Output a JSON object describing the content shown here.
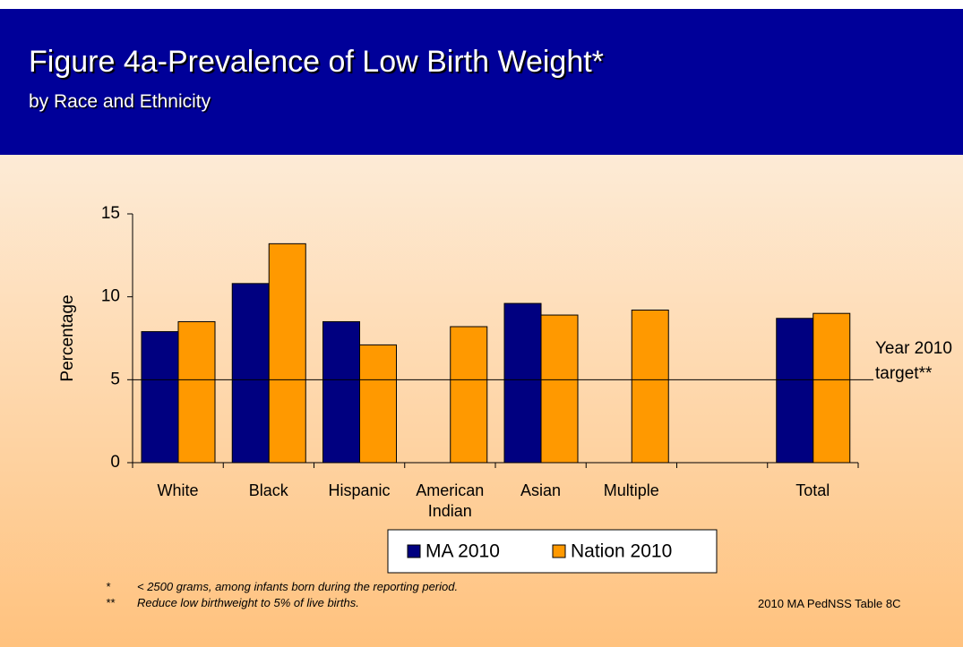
{
  "header": {
    "title": "Figure 4a-Prevalence of Low Birth Weight*",
    "subtitle": "by Race and Ethnicity"
  },
  "chart_data": {
    "type": "bar",
    "y_label": "Percentage",
    "categories": [
      "White",
      "Black",
      "Hispanic",
      "American Indian",
      "Asian",
      "Multiple",
      null,
      "Total"
    ],
    "series": [
      {
        "name": "MA 2010",
        "color": "#000080",
        "values": [
          7.9,
          10.8,
          8.5,
          null,
          9.6,
          null,
          null,
          8.7
        ]
      },
      {
        "name": "Nation 2010",
        "color": "#ff9900",
        "values": [
          8.5,
          13.2,
          7.1,
          8.2,
          8.9,
          9.2,
          null,
          9.0
        ]
      }
    ],
    "ylim": [
      0,
      15
    ],
    "yticks": [
      0,
      5,
      10,
      15
    ],
    "target": 5,
    "target_label": "Year 2010 target**"
  },
  "footnotes": [
    {
      "mark": "*",
      "text": "< 2500 grams, among infants born during the reporting period."
    },
    {
      "mark": "**",
      "text": "Reduce low birthweight to 5% of live births."
    }
  ],
  "source": "2010 MA PedNSS Table 8C"
}
